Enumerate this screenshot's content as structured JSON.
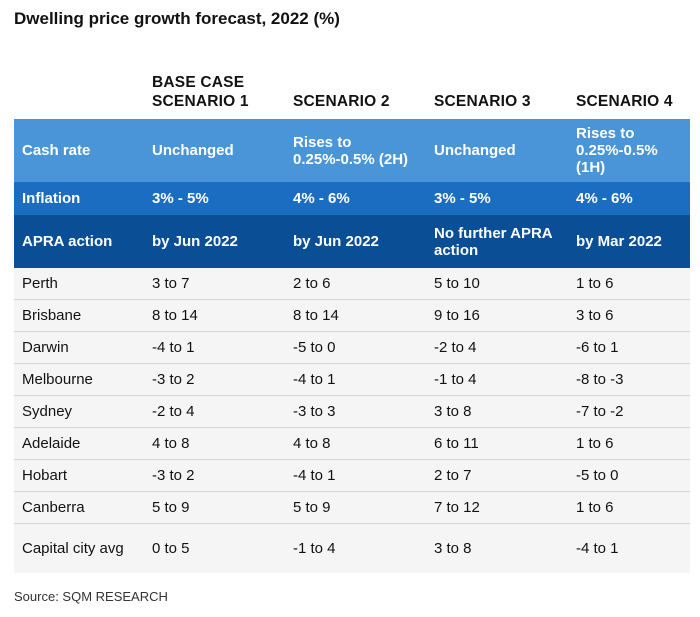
{
  "title": "Dwelling price growth forecast, 2022 (%)",
  "columns": [
    "",
    "BASE CASE SCENARIO 1",
    "SCENARIO 2",
    "SCENARIO 3",
    "SCENARIO 4"
  ],
  "assumptions": [
    {
      "label": "Cash rate",
      "values": [
        "Unchanged",
        "Rises to 0.25%-0.5% (2H)",
        "Unchanged",
        "Rises to 0.25%-0.5% (1H)"
      ]
    },
    {
      "label": "Inflation",
      "values": [
        "3% - 5%",
        "4% - 6%",
        "3% - 5%",
        "4% - 6%"
      ]
    },
    {
      "label": "APRA action",
      "values": [
        "by Jun 2022",
        "by Jun 2022",
        "No further APRA action",
        "by Mar 2022"
      ]
    }
  ],
  "rows": [
    {
      "city": "Perth",
      "values": [
        "3 to 7",
        "2 to 6",
        "5 to 10",
        "1 to 6"
      ]
    },
    {
      "city": "Brisbane",
      "values": [
        "8 to 14",
        "8 to 14",
        "9 to 16",
        "3 to 6"
      ]
    },
    {
      "city": "Darwin",
      "values": [
        "-4 to 1",
        "-5 to 0",
        "-2 to 4",
        "-6 to 1"
      ]
    },
    {
      "city": "Melbourne",
      "values": [
        "-3 to 2",
        "-4 to 1",
        "-1 to 4",
        "-8 to -3"
      ]
    },
    {
      "city": "Sydney",
      "values": [
        "-2 to 4",
        "-3 to 3",
        "3 to 8",
        "-7 to -2"
      ]
    },
    {
      "city": "Adelaide",
      "values": [
        "4 to 8",
        "4 to 8",
        "6 to 11",
        "1 to 6"
      ]
    },
    {
      "city": "Hobart",
      "values": [
        "-3 to 2",
        "-4 to 1",
        "2 to 7",
        "-5 to 0"
      ]
    },
    {
      "city": "Canberra",
      "values": [
        "5 to 9",
        "5 to 9",
        "7 to 12",
        "1 to 6"
      ]
    },
    {
      "city": "Capital city avg",
      "values": [
        "0 to 5",
        "-1 to 4",
        "3 to 8",
        "-4 to 1"
      ]
    }
  ],
  "source": "Source: SQM RESEARCH",
  "colors": {
    "cash_rate_band": "#4a95d8",
    "inflation_band": "#1b6dc2",
    "apra_band": "#0a4f96",
    "row_bg": "#f5f5f5"
  },
  "chart_data": {
    "type": "table",
    "title": "Dwelling price growth forecast, 2022 (%)",
    "columns": [
      "BASE CASE SCENARIO 1",
      "SCENARIO 2",
      "SCENARIO 3",
      "SCENARIO 4"
    ],
    "assumptions": {
      "Cash rate": [
        "Unchanged",
        "Rises to 0.25%-0.5% (2H)",
        "Unchanged",
        "Rises to 0.25%-0.5% (1H)"
      ],
      "Inflation": [
        "3% - 5%",
        "4% - 6%",
        "3% - 5%",
        "4% - 6%"
      ],
      "APRA action": [
        "by Jun 2022",
        "by Jun 2022",
        "No further APRA action",
        "by Mar 2022"
      ]
    },
    "series": [
      {
        "name": "Perth",
        "values": [
          [
            3,
            7
          ],
          [
            2,
            6
          ],
          [
            5,
            10
          ],
          [
            1,
            6
          ]
        ]
      },
      {
        "name": "Brisbane",
        "values": [
          [
            8,
            14
          ],
          [
            8,
            14
          ],
          [
            9,
            16
          ],
          [
            3,
            6
          ]
        ]
      },
      {
        "name": "Darwin",
        "values": [
          [
            -4,
            1
          ],
          [
            -5,
            0
          ],
          [
            -2,
            4
          ],
          [
            -6,
            1
          ]
        ]
      },
      {
        "name": "Melbourne",
        "values": [
          [
            -3,
            2
          ],
          [
            -4,
            1
          ],
          [
            -1,
            4
          ],
          [
            -8,
            -3
          ]
        ]
      },
      {
        "name": "Sydney",
        "values": [
          [
            -2,
            4
          ],
          [
            -3,
            3
          ],
          [
            3,
            8
          ],
          [
            -7,
            -2
          ]
        ]
      },
      {
        "name": "Adelaide",
        "values": [
          [
            4,
            8
          ],
          [
            4,
            8
          ],
          [
            6,
            11
          ],
          [
            1,
            6
          ]
        ]
      },
      {
        "name": "Hobart",
        "values": [
          [
            -3,
            2
          ],
          [
            -4,
            1
          ],
          [
            2,
            7
          ],
          [
            -5,
            0
          ]
        ]
      },
      {
        "name": "Canberra",
        "values": [
          [
            5,
            9
          ],
          [
            5,
            9
          ],
          [
            7,
            12
          ],
          [
            1,
            6
          ]
        ]
      },
      {
        "name": "Capital city avg",
        "values": [
          [
            0,
            5
          ],
          [
            -1,
            4
          ],
          [
            3,
            8
          ],
          [
            -4,
            1
          ]
        ]
      }
    ],
    "source": "Source: SQM RESEARCH"
  }
}
